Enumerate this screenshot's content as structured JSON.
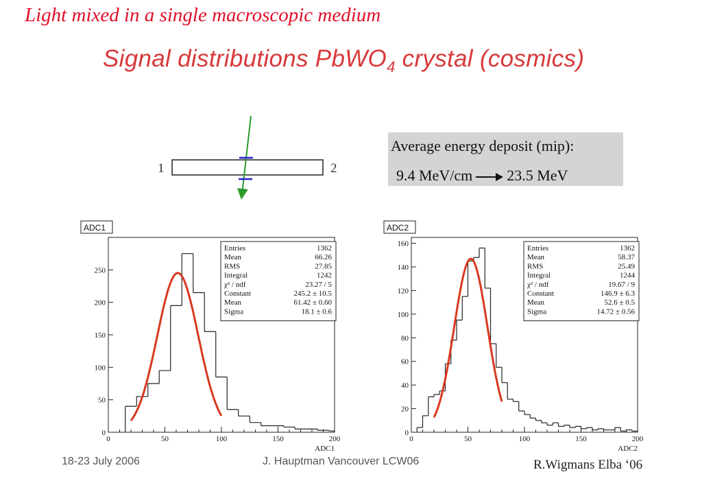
{
  "slide": {
    "title": "Light mixed in a single macroscopic medium",
    "subtitle_main": "Signal distributions PbWO",
    "subtitle_sub": "4",
    "subtitle_rest": "crystal  (cosmics)"
  },
  "diagram": {
    "end_left": "1",
    "end_right": "2"
  },
  "deposit": {
    "line1": "Average energy deposit (mip):",
    "from": "9.4 MeV/cm",
    "to": "23.5 MeV"
  },
  "colors": {
    "title": "#e0102a",
    "fit_curve": "#d8381e",
    "track": "#2a9a2a",
    "marker": "#2222cc",
    "box_bg": "#d4d4d4"
  },
  "chart_data": [
    {
      "type": "histogram",
      "title": "ADC1",
      "xlabel": "ADC1",
      "xlim": [
        0,
        200
      ],
      "ylim": [
        0,
        300
      ],
      "xticks": [
        0,
        50,
        100,
        150,
        200
      ],
      "yticks": [
        0,
        50,
        100,
        150,
        200,
        250
      ],
      "bin_edges": [
        15,
        25,
        35,
        45,
        55,
        65,
        75,
        85,
        95,
        105,
        115,
        125,
        135,
        145,
        155,
        165,
        175,
        185,
        195,
        200
      ],
      "bin_values": [
        40,
        55,
        75,
        95,
        195,
        275,
        215,
        155,
        85,
        35,
        25,
        15,
        10,
        10,
        8,
        5,
        5,
        3,
        2
      ],
      "fit": {
        "function": "gaus",
        "constant": 245.2,
        "mean": 61.42,
        "sigma": 18.1,
        "x_range": [
          20,
          100
        ]
      },
      "stats": [
        {
          "label": "Entries",
          "value": "1362"
        },
        {
          "label": "Mean",
          "value": "66.26"
        },
        {
          "label": "RMS",
          "value": "27.85"
        },
        {
          "label": "Integral",
          "value": "1242"
        },
        {
          "label": "χ² / ndf",
          "value": "23.27 / 5"
        },
        {
          "label": "Constant",
          "value": "245.2 ± 10.5"
        },
        {
          "label": "Mean",
          "value": "61.42 ± 0.60"
        },
        {
          "label": "Sigma",
          "value": "18.1 ± 0.6"
        }
      ]
    },
    {
      "type": "histogram",
      "title": "ADC2",
      "xlabel": "ADC2",
      "xlim": [
        0,
        200
      ],
      "ylim": [
        0,
        165
      ],
      "xticks": [
        0,
        50,
        100,
        150,
        200
      ],
      "yticks": [
        0,
        20,
        40,
        60,
        80,
        100,
        120,
        140,
        160
      ],
      "bin_edges": [
        5,
        10,
        15,
        20,
        25,
        30,
        35,
        40,
        45,
        50,
        55,
        60,
        65,
        70,
        75,
        80,
        85,
        90,
        95,
        100,
        105,
        110,
        115,
        120,
        125,
        130,
        135,
        140,
        145,
        150,
        155,
        160,
        165,
        170,
        175,
        180,
        185,
        190,
        195,
        200
      ],
      "bin_values": [
        4,
        14,
        30,
        32,
        35,
        58,
        78,
        95,
        115,
        145,
        148,
        156,
        122,
        75,
        55,
        42,
        28,
        26,
        18,
        15,
        12,
        10,
        8,
        6,
        8,
        5,
        6,
        4,
        5,
        3,
        4,
        2,
        3,
        2,
        2,
        4,
        1,
        2,
        1
      ],
      "fit": {
        "function": "gaus",
        "constant": 146.9,
        "mean": 52.6,
        "sigma": 14.72,
        "x_range": [
          20,
          80
        ]
      },
      "stats": [
        {
          "label": "Entries",
          "value": "1362"
        },
        {
          "label": "Mean",
          "value": "58.37"
        },
        {
          "label": "RMS",
          "value": "25.49"
        },
        {
          "label": "Integral",
          "value": "1244"
        },
        {
          "label": "χ² / ndf",
          "value": "19.67 / 9"
        },
        {
          "label": "Constant",
          "value": "146.9 ± 6.3"
        },
        {
          "label": "Mean",
          "value": "52.6 ± 0.5"
        },
        {
          "label": "Sigma",
          "value": "14.72 ± 0.56"
        }
      ]
    }
  ],
  "footer": {
    "date": "18-23 July 2006",
    "author": "J. Hauptman Vancouver LCW06",
    "credit": "R.Wigmans Elba ‘06"
  }
}
